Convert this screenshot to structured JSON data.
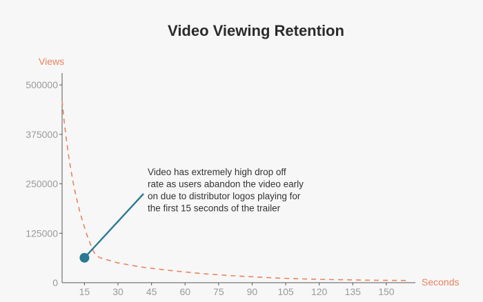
{
  "chart_data": {
    "type": "line",
    "title": "Video Viewing Retention",
    "xlabel": "Seconds",
    "ylabel": "Views",
    "xlim": [
      5,
      163
    ],
    "ylim": [
      0,
      530000
    ],
    "x_ticks": [
      15,
      30,
      45,
      60,
      75,
      90,
      105,
      120,
      135,
      150
    ],
    "y_ticks": [
      0,
      125000,
      250000,
      375000,
      500000
    ],
    "grid": false,
    "line_style": "dashed",
    "series": [
      {
        "x": [
          5,
          6,
          7,
          8,
          9,
          10,
          11,
          12,
          13,
          14,
          15,
          16,
          17,
          18,
          19,
          20,
          22,
          25,
          30,
          35,
          40,
          50,
          60,
          70,
          80,
          90,
          100,
          110,
          120,
          130,
          140,
          150,
          160
        ],
        "y": [
          460000,
          405000,
          358000,
          318000,
          283000,
          252000,
          225000,
          200000,
          178000,
          158000,
          140000,
          123000,
          107000,
          93000,
          80000,
          70000,
          63000,
          58000,
          50000,
          45000,
          40000,
          33000,
          27000,
          22000,
          18000,
          15000,
          12000,
          10000,
          8500,
          7500,
          6500,
          6000,
          5500
        ]
      }
    ],
    "annotation": {
      "text_lines": [
        "Video has extremely high drop off",
        "rate as users abandon the video early",
        "on due to distributor logos playing for",
        "the first 15 seconds of the trailer"
      ],
      "point": {
        "x": 15,
        "y": 63000
      }
    }
  },
  "colors": {
    "line": "#e8825b",
    "axis_label": "#e8825b",
    "tick": "#9a9a9a",
    "axis": "#555555",
    "annotation": "#2b7a94",
    "title": "#2b2b2b"
  }
}
